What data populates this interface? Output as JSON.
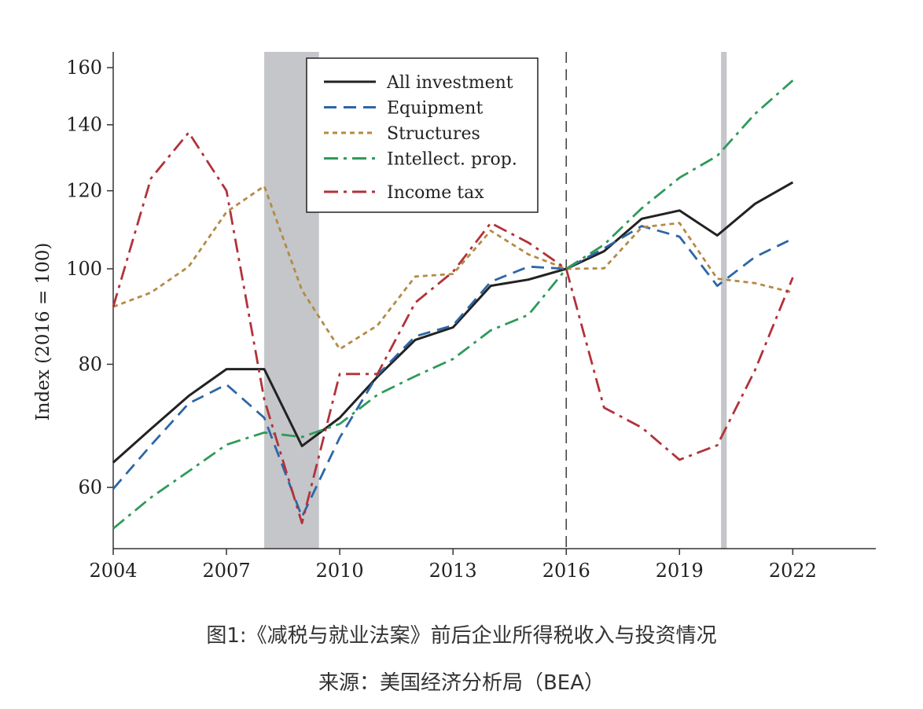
{
  "chart_data": {
    "type": "line",
    "ylabel": "Index (2016 = 100)",
    "xlabel": "",
    "x": [
      2004,
      2005,
      2006,
      2007,
      2008,
      2009,
      2010,
      2011,
      2012,
      2013,
      2014,
      2015,
      2016,
      2017,
      2018,
      2019,
      2020,
      2021,
      2022
    ],
    "x_ticks": [
      2004,
      2007,
      2010,
      2013,
      2016,
      2019,
      2022
    ],
    "y_ticks": [
      60,
      80,
      100,
      120,
      140,
      160
    ],
    "y_scale": "log",
    "xlim": [
      2004,
      2024.2
    ],
    "ylim": [
      52,
      166
    ],
    "recessions": [
      [
        2008,
        2009.45
      ],
      [
        2020.1,
        2020.25
      ]
    ],
    "reference_line_x": 2016,
    "legend_position": "top-center",
    "series": [
      {
        "name": "All investment",
        "color": "#222222",
        "dash": "solid",
        "values": [
          63.6,
          68.8,
          74.3,
          79.1,
          79.1,
          66.1,
          70.6,
          77.7,
          84.7,
          87.2,
          96.1,
          97.5,
          100.0,
          104.2,
          112.4,
          114.6,
          108.1,
          116.4,
          122.4
        ]
      },
      {
        "name": "Equipment",
        "color": "#2d66a6",
        "dash": "long-dash",
        "values": [
          59.8,
          66.2,
          73.0,
          76.3,
          70.6,
          56.0,
          67.4,
          78.0,
          85.4,
          87.6,
          97.0,
          100.5,
          100.0,
          104.9,
          110.5,
          107.8,
          96.1,
          102.8,
          107.3
        ]
      },
      {
        "name": "Structures",
        "color": "#b48a45",
        "dash": "short-dash",
        "values": [
          91.5,
          94.6,
          100.5,
          114.2,
          121.3,
          95.1,
          82.9,
          87.6,
          98.2,
          98.8,
          109.3,
          103.4,
          100.0,
          100.1,
          110.2,
          111.3,
          97.7,
          96.7,
          94.6
        ]
      },
      {
        "name": "Intellect. prop.",
        "color": "#2e9a5a",
        "dash": "dash-dot",
        "values": [
          54.5,
          58.6,
          62.3,
          66.3,
          68.2,
          67.5,
          69.6,
          74.5,
          77.8,
          81.0,
          86.6,
          89.8,
          100.0,
          105.8,
          115.2,
          123.7,
          130.2,
          143.6,
          155.3
        ]
      },
      {
        "name": "Income tax",
        "color": "#b2323a",
        "dash": "dash-dot",
        "values": [
          91.5,
          123.5,
          137.5,
          120.0,
          73.7,
          55.2,
          78.2,
          78.2,
          92.4,
          99.3,
          111.3,
          106.3,
          100.0,
          72.3,
          69.0,
          64.0,
          66.2,
          78.9,
          98.0
        ]
      }
    ]
  },
  "caption": {
    "title": "图1:《减税与就业法案》前后企业所得税收入与投资情况",
    "source": "来源：美国经济分析局（BEA）"
  }
}
